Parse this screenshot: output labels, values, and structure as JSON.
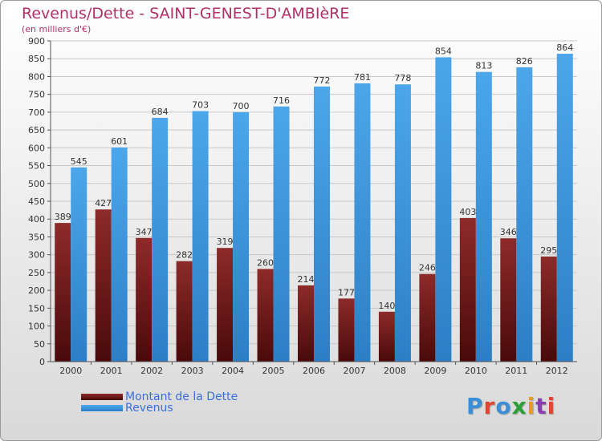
{
  "title": "Revenus/Dette - SAINT-GENEST-D'AMBIèRE",
  "subtitle": "(en milliers d'€)",
  "legend": {
    "debt_label": "Montant de la Dette",
    "revenue_label": "Revenus"
  },
  "logo": {
    "text": "Proxiti",
    "letter_colors": [
      "#3a8fd8",
      "#e0462e",
      "#3a8fd8",
      "#2e9e3a",
      "#e89a1e",
      "#8a3fb0",
      "#e0462e"
    ]
  },
  "colors": {
    "debt": "#7a1f1f",
    "revenue": "#3d9be0",
    "title": "#b0306a",
    "legend_text": "#3b6fd6"
  },
  "chart_data": {
    "type": "bar",
    "categories": [
      "2000",
      "2001",
      "2002",
      "2003",
      "2004",
      "2005",
      "2006",
      "2007",
      "2008",
      "2009",
      "2010",
      "2011",
      "2012"
    ],
    "series": [
      {
        "name": "Montant de la Dette",
        "values": [
          389,
          427,
          347,
          282,
          319,
          260,
          214,
          177,
          140,
          246,
          403,
          346,
          295
        ]
      },
      {
        "name": "Revenus",
        "values": [
          545,
          601,
          684,
          703,
          700,
          716,
          772,
          781,
          778,
          854,
          813,
          826,
          864
        ]
      }
    ],
    "yticks": [
      0,
      50,
      100,
      150,
      200,
      250,
      300,
      350,
      400,
      450,
      500,
      550,
      600,
      650,
      700,
      750,
      800,
      850,
      900
    ],
    "ylim": [
      0,
      900
    ],
    "grid": true,
    "legend_position": "bottom-left"
  }
}
